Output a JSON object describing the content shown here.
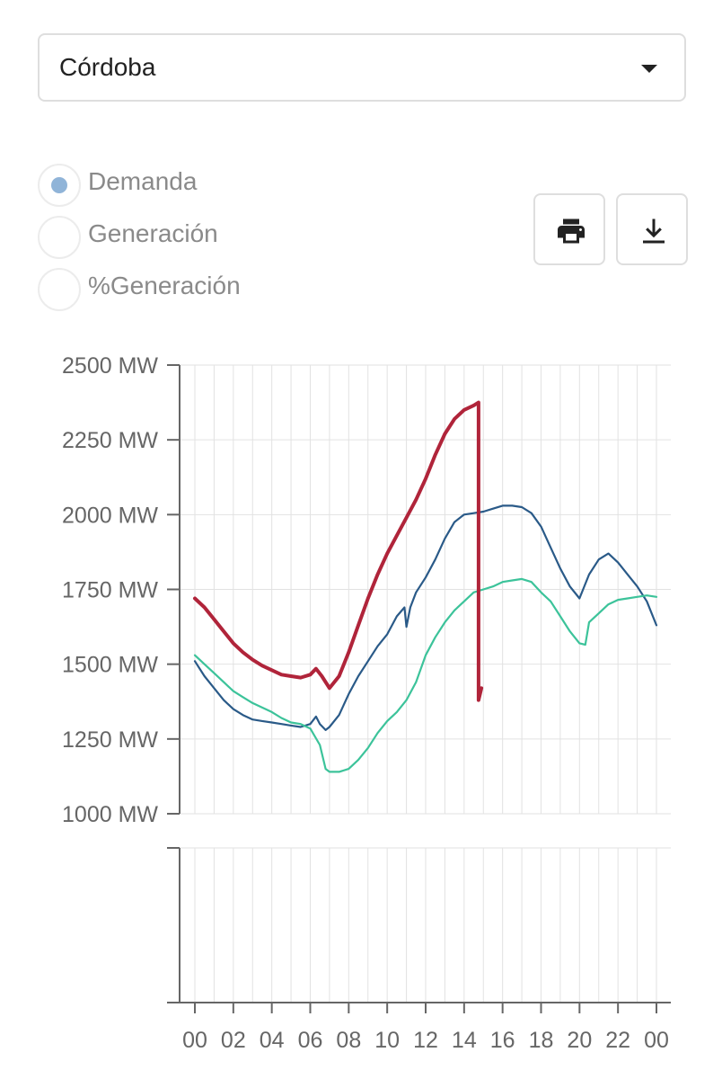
{
  "selector": {
    "value": "Córdoba"
  },
  "radios": [
    {
      "label": "Demanda",
      "checked": true
    },
    {
      "label": "Generación",
      "checked": false
    },
    {
      "label": "%Generación",
      "checked": false
    }
  ],
  "buttons": {
    "print_icon": "print-icon",
    "download_icon": "download-icon"
  },
  "chart_data": {
    "type": "line",
    "ylim": [
      1000,
      2500
    ],
    "y_ticks": [
      "2500 MW",
      "2250 MW",
      "2000 MW",
      "1750 MW",
      "1500 MW",
      "1250 MW",
      "1000 MW"
    ],
    "x_ticks": [
      "00",
      "02",
      "04",
      "06",
      "08",
      "10",
      "12",
      "14",
      "16",
      "18",
      "20",
      "22",
      "00"
    ],
    "xlim_hours": [
      0,
      24
    ],
    "grid": true,
    "series": [
      {
        "color": "#2a5a88",
        "x": [
          0,
          0.5,
          1,
          1.5,
          2,
          2.5,
          3,
          3.5,
          4,
          4.5,
          5,
          5.5,
          6,
          6.3,
          6.5,
          6.8,
          7,
          7.5,
          8,
          8.5,
          9,
          9.5,
          10,
          10.5,
          10.9,
          11,
          11.2,
          11.5,
          12,
          12.5,
          13,
          13.5,
          14,
          14.5,
          15,
          15.5,
          16,
          16.5,
          17,
          17.5,
          18,
          18.5,
          19,
          19.5,
          20,
          20.5,
          21,
          21.5,
          22,
          22.5,
          23,
          23.5,
          24
        ],
        "values": [
          1510,
          1460,
          1420,
          1380,
          1350,
          1330,
          1315,
          1310,
          1305,
          1300,
          1295,
          1290,
          1300,
          1325,
          1300,
          1280,
          1290,
          1330,
          1400,
          1460,
          1510,
          1560,
          1600,
          1660,
          1690,
          1625,
          1690,
          1740,
          1790,
          1850,
          1920,
          1975,
          2000,
          2005,
          2010,
          2020,
          2030,
          2030,
          2025,
          2005,
          1960,
          1890,
          1820,
          1760,
          1720,
          1800,
          1850,
          1870,
          1840,
          1800,
          1760,
          1710,
          1630
        ]
      },
      {
        "color": "#3cc39a",
        "x": [
          0,
          0.5,
          1,
          1.5,
          2,
          2.5,
          3,
          3.5,
          4,
          4.5,
          5,
          5.5,
          6,
          6.5,
          6.8,
          7,
          7.5,
          8,
          8.5,
          9,
          9.5,
          10,
          10.5,
          11,
          11.5,
          12,
          12.5,
          13,
          13.5,
          14,
          14.5,
          15,
          15.5,
          16,
          16.5,
          17,
          17.5,
          18,
          18.5,
          19,
          19.5,
          20,
          20.3,
          20.5,
          21,
          21.5,
          22,
          22.5,
          23,
          23.5,
          24
        ],
        "values": [
          1530,
          1500,
          1470,
          1440,
          1410,
          1390,
          1370,
          1355,
          1340,
          1320,
          1305,
          1300,
          1285,
          1230,
          1150,
          1140,
          1140,
          1150,
          1180,
          1220,
          1270,
          1310,
          1340,
          1380,
          1440,
          1530,
          1590,
          1640,
          1680,
          1710,
          1740,
          1750,
          1760,
          1775,
          1780,
          1785,
          1775,
          1740,
          1710,
          1660,
          1610,
          1570,
          1565,
          1640,
          1670,
          1700,
          1715,
          1720,
          1725,
          1730,
          1725
        ]
      },
      {
        "color": "#b0243a",
        "x": [
          0,
          0.5,
          1,
          1.5,
          2,
          2.5,
          3,
          3.5,
          4,
          4.5,
          5,
          5.5,
          6,
          6.3,
          6.6,
          7,
          7.5,
          8,
          8.5,
          9,
          9.5,
          10,
          10.5,
          11,
          11.5,
          12,
          12.5,
          13,
          13.5,
          14,
          14.5,
          14.75,
          14.75,
          14.9
        ],
        "values": [
          1720,
          1690,
          1650,
          1610,
          1570,
          1540,
          1515,
          1495,
          1480,
          1465,
          1460,
          1455,
          1465,
          1485,
          1460,
          1420,
          1460,
          1540,
          1630,
          1720,
          1800,
          1870,
          1930,
          1990,
          2050,
          2120,
          2200,
          2270,
          2320,
          2350,
          2365,
          2375,
          1380,
          1420
        ]
      }
    ]
  }
}
